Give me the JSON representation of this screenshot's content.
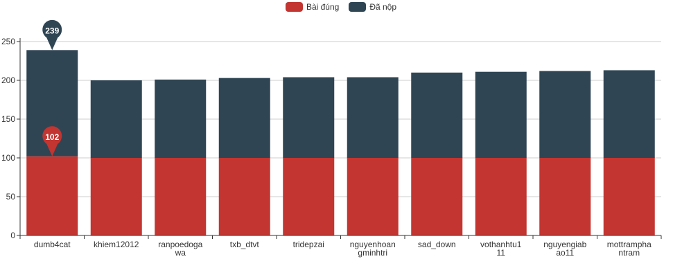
{
  "chart_data": {
    "type": "bar",
    "stacked": true,
    "categories": [
      "dumb4cat",
      "khiem12012",
      "ranpoedogawa",
      "txb_dtvt",
      "tridepzai",
      "nguyenhoangminhtri",
      "sad_down",
      "vothanhtu111",
      "nguyengiabao11",
      "mottramphantram"
    ],
    "category_label_lines": [
      [
        "dumb4cat"
      ],
      [
        "khiem12012"
      ],
      [
        "ranpoedoga",
        "wa"
      ],
      [
        "txb_dtvt"
      ],
      [
        "tridepzai"
      ],
      [
        "nguyenhoan",
        "gminhtri"
      ],
      [
        "sad_down"
      ],
      [
        "vothanhtu1",
        "11"
      ],
      [
        "nguyengiab",
        "ao11"
      ],
      [
        "mottrampha",
        "ntram"
      ]
    ],
    "series": [
      {
        "name": "Bài đúng",
        "color": "#c23531",
        "values": [
          102,
          100,
          100,
          100,
          100,
          100,
          100,
          100,
          100,
          100
        ]
      },
      {
        "name": "Đã nộp",
        "color": "#2f4554",
        "totals": [
          239,
          200,
          201,
          203,
          204,
          204,
          210,
          211,
          212,
          213
        ]
      }
    ],
    "ylim": [
      0,
      250
    ],
    "yticks": [
      0,
      50,
      100,
      150,
      200,
      250
    ],
    "grid": true,
    "legend_position": "top-center",
    "markers": [
      {
        "series": "Đã nộp",
        "category": "dumb4cat",
        "value": 239,
        "label": "239"
      },
      {
        "series": "Bài đúng",
        "category": "dumb4cat",
        "value": 102,
        "label": "102"
      }
    ]
  }
}
